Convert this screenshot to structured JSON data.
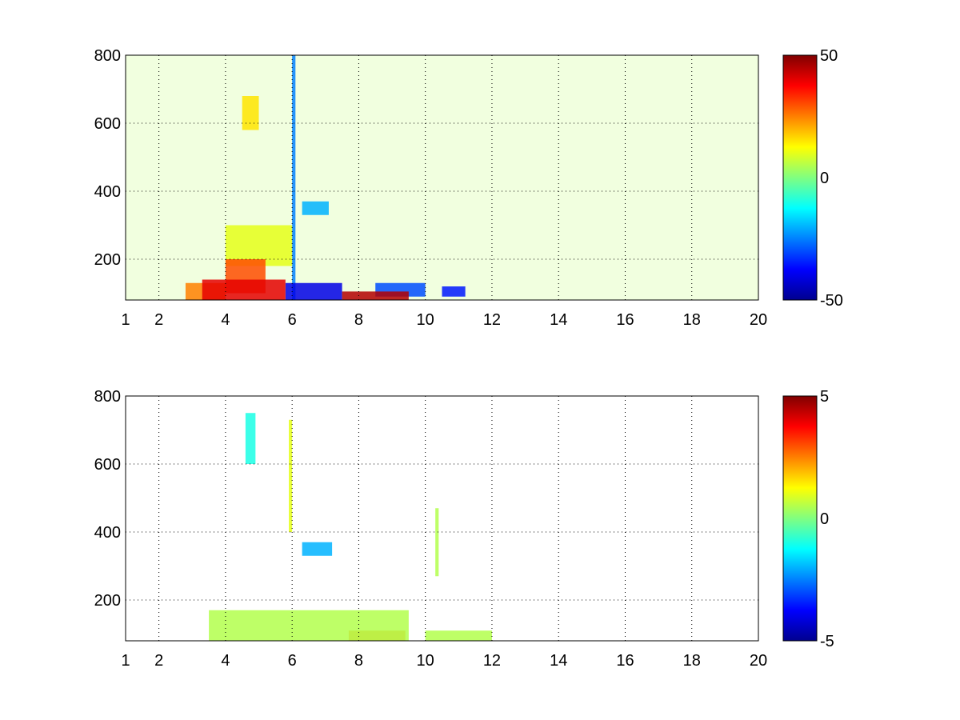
{
  "chart_data": [
    {
      "type": "heatmap",
      "title": "",
      "xlabel": "",
      "ylabel": "",
      "xlim": [
        1,
        20
      ],
      "ylim": [
        80,
        800
      ],
      "xticks": [
        1,
        2,
        4,
        6,
        8,
        10,
        12,
        14,
        16,
        18,
        20
      ],
      "yticks": [
        200,
        400,
        600,
        800
      ],
      "grid": true,
      "colormap": "jet",
      "colorbar": {
        "min": -50,
        "max": 50,
        "ticks": [
          -50,
          0,
          50
        ]
      },
      "regions": [
        {
          "x": [
            3.3,
            5.8
          ],
          "y": [
            80,
            140
          ],
          "value": 40
        },
        {
          "x": [
            4.0,
            5.2
          ],
          "y": [
            100,
            200
          ],
          "value": 30
        },
        {
          "x": [
            2.8,
            4.0
          ],
          "y": [
            80,
            130
          ],
          "value": 25
        },
        {
          "x": [
            7.5,
            9.5
          ],
          "y": [
            80,
            105
          ],
          "value": 45
        },
        {
          "x": [
            5.8,
            7.5
          ],
          "y": [
            80,
            130
          ],
          "value": -40
        },
        {
          "x": [
            8.5,
            10.0
          ],
          "y": [
            90,
            130
          ],
          "value": -30
        },
        {
          "x": [
            10.5,
            11.2
          ],
          "y": [
            90,
            120
          ],
          "value": -35
        },
        {
          "x": [
            4.0,
            6.0
          ],
          "y": [
            180,
            300
          ],
          "value": 10
        },
        {
          "x": [
            6.3,
            7.1
          ],
          "y": [
            330,
            370
          ],
          "value": -20
        },
        {
          "x": [
            6.0,
            6.1
          ],
          "y": [
            80,
            800
          ],
          "value": -25
        },
        {
          "x": [
            4.5,
            5.0
          ],
          "y": [
            580,
            680
          ],
          "value": 15
        },
        {
          "x": [
            1.0,
            20.0
          ],
          "y": [
            80,
            800
          ],
          "value": 5
        }
      ]
    },
    {
      "type": "heatmap",
      "title": "",
      "xlabel": "",
      "ylabel": "",
      "xlim": [
        1,
        20
      ],
      "ylim": [
        80,
        800
      ],
      "xticks": [
        1,
        2,
        4,
        6,
        8,
        10,
        12,
        14,
        16,
        18,
        20
      ],
      "yticks": [
        200,
        400,
        600,
        800
      ],
      "grid": true,
      "colormap": "jet",
      "colorbar": {
        "min": -5,
        "max": 5,
        "ticks": [
          -5,
          0,
          5
        ]
      },
      "regions": [
        {
          "x": [
            3.5,
            9.5
          ],
          "y": [
            80,
            170
          ],
          "value": 0.5
        },
        {
          "x": [
            7.7,
            9.4
          ],
          "y": [
            80,
            110
          ],
          "value": 2.5
        },
        {
          "x": [
            6.3,
            7.2
          ],
          "y": [
            330,
            370
          ],
          "value": -2
        },
        {
          "x": [
            5.9,
            6.0
          ],
          "y": [
            400,
            730
          ],
          "value": 1
        },
        {
          "x": [
            10.3,
            10.4
          ],
          "y": [
            270,
            470
          ],
          "value": 0.5
        },
        {
          "x": [
            4.6,
            4.9
          ],
          "y": [
            600,
            750
          ],
          "value": -1
        },
        {
          "x": [
            10.0,
            12.0
          ],
          "y": [
            80,
            110
          ],
          "value": 0.5
        }
      ]
    }
  ]
}
